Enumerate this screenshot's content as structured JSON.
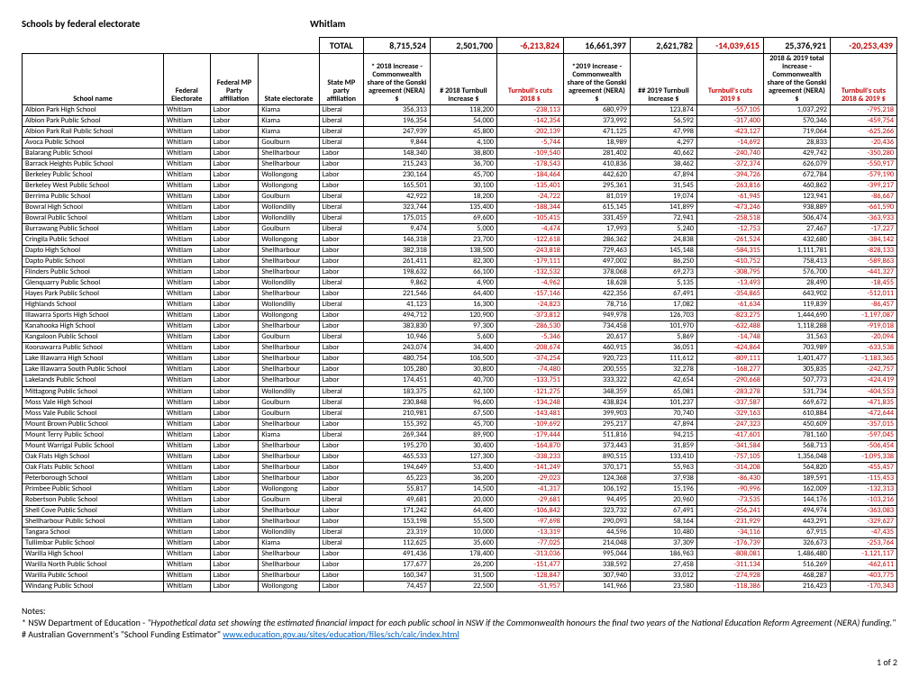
{
  "header": {
    "title": "Schools by federal electorate",
    "electorate": "Whitlam"
  },
  "totals": {
    "label": "TOTAL",
    "values": [
      "8,715,524",
      "2,501,700",
      "-6,213,824",
      "16,661,397",
      "2,621,782",
      "-14,039,615",
      "25,376,921",
      "-20,253,439"
    ]
  },
  "columns": [
    "School name",
    "Federal Electorate",
    "Federal MP Party affiliation",
    "State electorate",
    "State MP party affiliation",
    "* 2018 increase - Commonwealth share of the Gonski agreement (NERA) $",
    "# 2018 Turnbull increase $",
    "Turnbull's cuts 2018 $",
    "*2019 increase - Commonwealth share of the Gonski agreement (NERA) $",
    "## 2019 Turnbull increase $",
    "Turnbull's cuts 2019 $",
    "2018 & 2019 total increase - Commonwealth share of the Gonski agreement (NERA) $",
    "Turnbull's cuts 2018 & 2019 $"
  ],
  "neg_color": "#c00000",
  "rows": [
    [
      "Albion Park High School",
      "Whitlam",
      "Labor",
      "Kiama",
      "Liberal",
      "356,313",
      "118,200",
      "-238,113",
      "680,979",
      "123,874",
      "-557,105",
      "1,037,292",
      "-795,218"
    ],
    [
      "Albion Park Public School",
      "Whitlam",
      "Labor",
      "Kiama",
      "Liberal",
      "196,354",
      "54,000",
      "-142,354",
      "373,992",
      "56,592",
      "-317,400",
      "570,346",
      "-459,754"
    ],
    [
      "Albion Park Rail Public School",
      "Whitlam",
      "Labor",
      "Kiama",
      "Liberal",
      "247,939",
      "45,800",
      "-202,139",
      "471,125",
      "47,998",
      "-423,127",
      "719,064",
      "-625,266"
    ],
    [
      "Avoca Public School",
      "Whitlam",
      "Labor",
      "Goulburn",
      "Liberal",
      "9,844",
      "4,100",
      "-5,744",
      "18,989",
      "4,297",
      "-14,692",
      "28,833",
      "-20,436"
    ],
    [
      "Balarang Public School",
      "Whitlam",
      "Labor",
      "Shellharbour",
      "Labor",
      "148,340",
      "38,800",
      "-109,540",
      "281,402",
      "40,662",
      "-240,740",
      "429,742",
      "-350,280"
    ],
    [
      "Barrack Heights Public School",
      "Whitlam",
      "Labor",
      "Shellharbour",
      "Labor",
      "215,243",
      "36,700",
      "-178,543",
      "410,836",
      "38,462",
      "-372,374",
      "626,079",
      "-550,917"
    ],
    [
      "Berkeley Public School",
      "Whitlam",
      "Labor",
      "Wollongong",
      "Labor",
      "230,164",
      "45,700",
      "-184,464",
      "442,620",
      "47,894",
      "-394,726",
      "672,784",
      "-579,190"
    ],
    [
      "Berkeley West Public School",
      "Whitlam",
      "Labor",
      "Wollongong",
      "Labor",
      "165,501",
      "30,100",
      "-135,401",
      "295,361",
      "31,545",
      "-263,816",
      "460,862",
      "-399,217"
    ],
    [
      "Berrima Public School",
      "Whitlam",
      "Labor",
      "Goulburn",
      "Liberal",
      "42,922",
      "18,200",
      "-24,722",
      "81,019",
      "19,074",
      "-61,945",
      "123,941",
      "-86,667"
    ],
    [
      "Bowral High School",
      "Whitlam",
      "Labor",
      "Wollondilly",
      "Liberal",
      "323,744",
      "135,400",
      "-188,344",
      "615,145",
      "141,899",
      "-473,246",
      "938,889",
      "-661,590"
    ],
    [
      "Bowral Public School",
      "Whitlam",
      "Labor",
      "Wollondilly",
      "Liberal",
      "175,015",
      "69,600",
      "-105,415",
      "331,459",
      "72,941",
      "-258,518",
      "506,474",
      "-363,933"
    ],
    [
      "Burrawang Public School",
      "Whitlam",
      "Labor",
      "Goulburn",
      "Liberal",
      "9,474",
      "5,000",
      "-4,474",
      "17,993",
      "5,240",
      "-12,753",
      "27,467",
      "-17,227"
    ],
    [
      "Cringila Public School",
      "Whitlam",
      "Labor",
      "Wollongong",
      "Labor",
      "146,318",
      "23,700",
      "-122,618",
      "286,362",
      "24,838",
      "-261,524",
      "432,680",
      "-384,142"
    ],
    [
      "Dapto High School",
      "Whitlam",
      "Labor",
      "Shellharbour",
      "Labor",
      "382,318",
      "138,500",
      "-243,818",
      "729,463",
      "145,148",
      "-584,315",
      "1,111,781",
      "-828,133"
    ],
    [
      "Dapto Public School",
      "Whitlam",
      "Labor",
      "Shellharbour",
      "Labor",
      "261,411",
      "82,300",
      "-179,111",
      "497,002",
      "86,250",
      "-410,752",
      "758,413",
      "-589,863"
    ],
    [
      "Flinders Public School",
      "Whitlam",
      "Labor",
      "Shellharbour",
      "Labor",
      "198,632",
      "66,100",
      "-132,532",
      "378,068",
      "69,273",
      "-308,795",
      "576,700",
      "-441,327"
    ],
    [
      "Glenquarry Public School",
      "Whitlam",
      "Labor",
      "Wollondilly",
      "Liberal",
      "9,862",
      "4,900",
      "-4,962",
      "18,628",
      "5,135",
      "-13,493",
      "28,490",
      "-18,455"
    ],
    [
      "Hayes Park Public School",
      "Whitlam",
      "Labor",
      "Shellharbour",
      "Labor",
      "221,546",
      "64,400",
      "-157,146",
      "422,356",
      "67,491",
      "-354,865",
      "643,902",
      "-512,011"
    ],
    [
      "Highlands School",
      "Whitlam",
      "Labor",
      "Wollondilly",
      "Liberal",
      "41,123",
      "16,300",
      "-24,823",
      "78,716",
      "17,082",
      "-61,634",
      "119,839",
      "-86,457"
    ],
    [
      "Illawarra Sports High School",
      "Whitlam",
      "Labor",
      "Wollongong",
      "Labor",
      "494,712",
      "120,900",
      "-373,812",
      "949,978",
      "126,703",
      "-823,275",
      "1,444,690",
      "-1,197,087"
    ],
    [
      "Kanahooka High School",
      "Whitlam",
      "Labor",
      "Shellharbour",
      "Labor",
      "383,830",
      "97,300",
      "-286,530",
      "734,458",
      "101,970",
      "-632,488",
      "1,118,288",
      "-919,018"
    ],
    [
      "Kangaloon Public School",
      "Whitlam",
      "Labor",
      "Goulburn",
      "Liberal",
      "10,946",
      "5,600",
      "-5,346",
      "20,617",
      "5,869",
      "-14,748",
      "31,563",
      "-20,094"
    ],
    [
      "Koonawarra Public School",
      "Whitlam",
      "Labor",
      "Shellharbour",
      "Labor",
      "243,074",
      "34,400",
      "-208,674",
      "460,915",
      "36,051",
      "-424,864",
      "703,989",
      "-633,538"
    ],
    [
      "Lake Illawarra High School",
      "Whitlam",
      "Labor",
      "Shellharbour",
      "Labor",
      "480,754",
      "106,500",
      "-374,254",
      "920,723",
      "111,612",
      "-809,111",
      "1,401,477",
      "-1,183,365"
    ],
    [
      "Lake Illawarra South Public School",
      "Whitlam",
      "Labor",
      "Shellharbour",
      "Labor",
      "105,280",
      "30,800",
      "-74,480",
      "200,555",
      "32,278",
      "-168,277",
      "305,835",
      "-242,757"
    ],
    [
      "Lakelands Public School",
      "Whitlam",
      "Labor",
      "Shellharbour",
      "Labor",
      "174,451",
      "40,700",
      "-133,751",
      "333,322",
      "42,654",
      "-290,668",
      "507,773",
      "-424,419"
    ],
    [
      "Mittagong Public School",
      "Whitlam",
      "Labor",
      "Wollondilly",
      "Liberal",
      "183,375",
      "62,100",
      "-121,275",
      "348,359",
      "65,081",
      "-283,278",
      "531,734",
      "-404,553"
    ],
    [
      "Moss Vale High School",
      "Whitlam",
      "Labor",
      "Goulburn",
      "Liberal",
      "230,848",
      "96,600",
      "-134,248",
      "438,824",
      "101,237",
      "-337,587",
      "669,672",
      "-471,835"
    ],
    [
      "Moss Vale Public School",
      "Whitlam",
      "Labor",
      "Goulburn",
      "Liberal",
      "210,981",
      "67,500",
      "-143,481",
      "399,903",
      "70,740",
      "-329,163",
      "610,884",
      "-472,644"
    ],
    [
      "Mount Brown Public School",
      "Whitlam",
      "Labor",
      "Shellharbour",
      "Labor",
      "155,392",
      "45,700",
      "-109,692",
      "295,217",
      "47,894",
      "-247,323",
      "450,609",
      "-357,015"
    ],
    [
      "Mount Terry Public School",
      "Whitlam",
      "Labor",
      "Kiama",
      "Liberal",
      "269,344",
      "89,900",
      "-179,444",
      "511,816",
      "94,215",
      "-417,601",
      "781,160",
      "-597,045"
    ],
    [
      "Mount Warrigal Public School",
      "Whitlam",
      "Labor",
      "Shellharbour",
      "Labor",
      "195,270",
      "30,400",
      "-164,870",
      "373,443",
      "31,859",
      "-341,584",
      "568,713",
      "-506,454"
    ],
    [
      "Oak Flats High School",
      "Whitlam",
      "Labor",
      "Shellharbour",
      "Labor",
      "465,533",
      "127,300",
      "-338,233",
      "890,515",
      "133,410",
      "-757,105",
      "1,356,048",
      "-1,095,338"
    ],
    [
      "Oak Flats Public School",
      "Whitlam",
      "Labor",
      "Shellharbour",
      "Labor",
      "194,649",
      "53,400",
      "-141,249",
      "370,171",
      "55,963",
      "-314,208",
      "564,820",
      "-455,457"
    ],
    [
      "Peterborough School",
      "Whitlam",
      "Labor",
      "Shellharbour",
      "Labor",
      "65,223",
      "36,200",
      "-29,023",
      "124,368",
      "37,938",
      "-86,430",
      "189,591",
      "-115,453"
    ],
    [
      "Primbee Public School",
      "Whitlam",
      "Labor",
      "Wollongong",
      "Labor",
      "55,817",
      "14,500",
      "-41,317",
      "106,192",
      "15,196",
      "-90,996",
      "162,009",
      "-132,313"
    ],
    [
      "Robertson Public School",
      "Whitlam",
      "Labor",
      "Goulburn",
      "Liberal",
      "49,681",
      "20,000",
      "-29,681",
      "94,495",
      "20,960",
      "-73,535",
      "144,176",
      "-103,216"
    ],
    [
      "Shell Cove Public School",
      "Whitlam",
      "Labor",
      "Shellharbour",
      "Labor",
      "171,242",
      "64,400",
      "-106,842",
      "323,732",
      "67,491",
      "-256,241",
      "494,974",
      "-363,083"
    ],
    [
      "Shellharbour Public School",
      "Whitlam",
      "Labor",
      "Shellharbour",
      "Labor",
      "153,198",
      "55,500",
      "-97,698",
      "290,093",
      "58,164",
      "-231,929",
      "443,291",
      "-329,627"
    ],
    [
      "Tangara School",
      "Whitlam",
      "Labor",
      "Wollondilly",
      "Liberal",
      "23,319",
      "10,000",
      "-13,319",
      "44,596",
      "10,480",
      "-34,116",
      "67,915",
      "-47,435"
    ],
    [
      "Tullimbar Public School",
      "Whitlam",
      "Labor",
      "Kiama",
      "Liberal",
      "112,625",
      "35,600",
      "-77,025",
      "214,048",
      "37,309",
      "-176,739",
      "326,673",
      "-253,764"
    ],
    [
      "Warilla High School",
      "Whitlam",
      "Labor",
      "Shellharbour",
      "Labor",
      "491,436",
      "178,400",
      "-313,036",
      "995,044",
      "186,963",
      "-808,081",
      "1,486,480",
      "-1,121,117"
    ],
    [
      "Warilla North Public School",
      "Whitlam",
      "Labor",
      "Shellharbour",
      "Labor",
      "177,677",
      "26,200",
      "-151,477",
      "338,592",
      "27,458",
      "-311,134",
      "516,269",
      "-462,611"
    ],
    [
      "Warilla Public School",
      "Whitlam",
      "Labor",
      "Shellharbour",
      "Labor",
      "160,347",
      "31,500",
      "-128,847",
      "307,940",
      "33,012",
      "-274,928",
      "468,287",
      "-403,775"
    ],
    [
      "Windang Public School",
      "Whitlam",
      "Labor",
      "Wollongong",
      "Labor",
      "74,457",
      "22,500",
      "-51,957",
      "141,966",
      "23,580",
      "-118,386",
      "216,423",
      "-170,343"
    ]
  ],
  "notes": {
    "heading": "Notes:",
    "line1a": "* NSW Department of Education - ",
    "line1b": "\"Hypothetical data set showing the estimated financial impact for each public school in NSW if the Commonwealth honours the final two years of the National Education Reform Agreement (NERA) funding.\"",
    "line2a": "# Australian Government's \"School Funding Estimator\" ",
    "line2b": "www.education.gov.au/sites/education/files/sch/calc/index.html"
  },
  "pager": "1 of 2"
}
